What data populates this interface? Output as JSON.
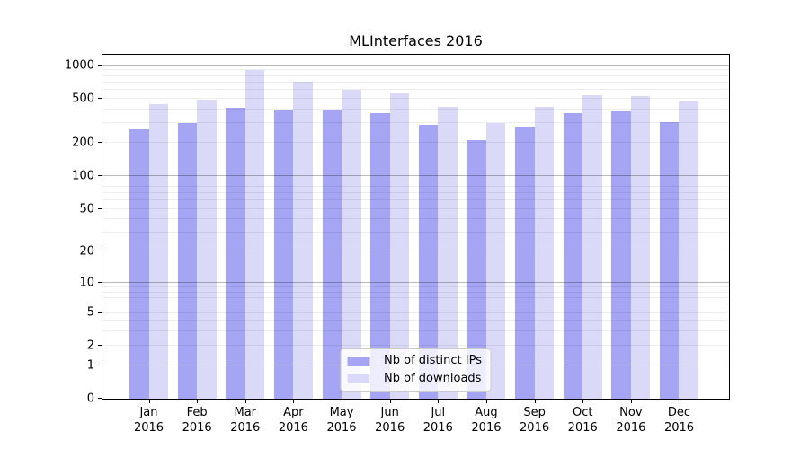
{
  "chart_data": {
    "type": "bar",
    "title": "MLInterfaces 2016",
    "categories": [
      "Jan",
      "Feb",
      "Mar",
      "Apr",
      "May",
      "Jun",
      "Jul",
      "Aug",
      "Sep",
      "Oct",
      "Nov",
      "Dec"
    ],
    "category_year": "2016",
    "series": [
      {
        "name": "Nb of distinct IPs",
        "color": "#a5a5f3",
        "values": [
          265,
          300,
          414,
          396,
          393,
          371,
          292,
          212,
          278,
          370,
          384,
          307
        ]
      },
      {
        "name": "Nb of downloads",
        "color": "#dadaf8",
        "values": [
          445,
          490,
          908,
          713,
          603,
          557,
          418,
          300,
          424,
          534,
          530,
          473
        ]
      }
    ],
    "y_axis": {
      "scale": "log1p",
      "ticks": [
        0,
        1,
        2,
        5,
        10,
        20,
        50,
        100,
        200,
        500,
        1000
      ],
      "major_gridlines": [
        1,
        10,
        100,
        1000
      ],
      "minor_gridlines": [
        2,
        3,
        4,
        5,
        6,
        7,
        8,
        9,
        20,
        30,
        40,
        50,
        60,
        70,
        80,
        90,
        200,
        300,
        400,
        500,
        600,
        700,
        800,
        900
      ],
      "range_top": 1000
    },
    "legend": {
      "position": "bottom-center",
      "items": [
        "Nb of distinct IPs",
        "Nb of downloads"
      ]
    },
    "grid": true
  }
}
